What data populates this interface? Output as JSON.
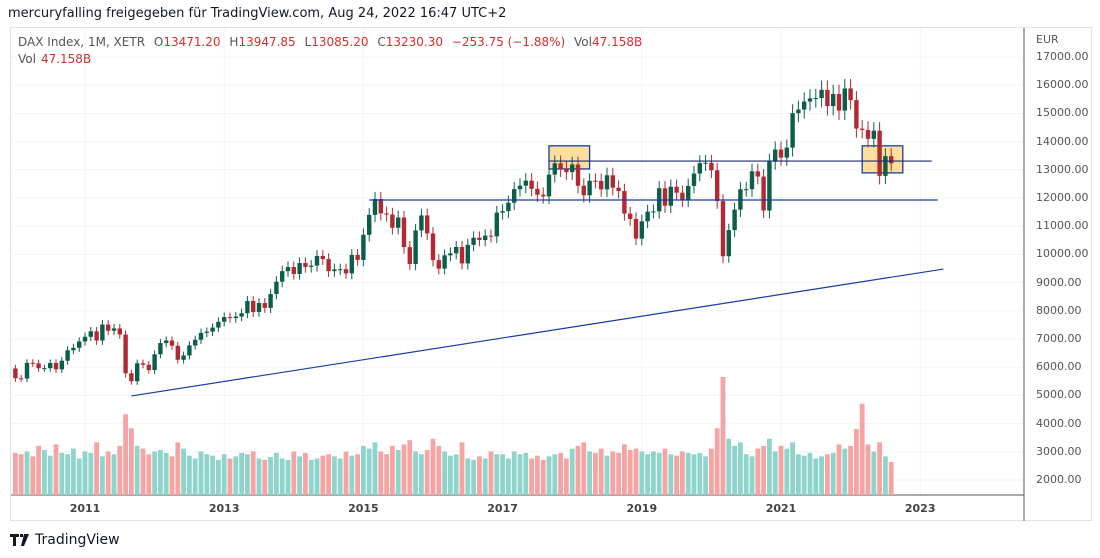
{
  "header": {
    "title": "mercuryfalling freigegeben für TradingView.com, Aug 24, 2022 16:47 UTC+2"
  },
  "legend": {
    "symbol": "DAX Index, 1M, XETR",
    "o_label": "O",
    "o": "13471.20",
    "h_label": "H",
    "h": "13947.85",
    "l_label": "L",
    "l": "13085.20",
    "c_label": "C",
    "c": "13230.30",
    "change": "−253.75 (−1.88%)",
    "vol_label": "Vol",
    "vol": "47.158B",
    "vol2_label": "Vol",
    "vol2": "47.158B"
  },
  "currency": "EUR",
  "price_ticks": [
    "17000.00",
    "16000.00",
    "15000.00",
    "14000.00",
    "13000.00",
    "12000.00",
    "11000.00",
    "10000.00",
    "9000.00",
    "8000.00",
    "7000.00",
    "6000.00",
    "5000.00",
    "4000.00",
    "3000.00",
    "2000.00"
  ],
  "time_ticks": [
    "2011",
    "2013",
    "2015",
    "2017",
    "2019",
    "2021",
    "2023"
  ],
  "brand": "TradingView",
  "colors": {
    "up": "#0b5e4a",
    "down": "#b22833",
    "vol_up": "#8fd4cb",
    "vol_down": "#f5a3a3",
    "drawing": "#1a3aa8",
    "box_fill": "#fbd98c"
  },
  "chart_data": {
    "type": "candlestick",
    "start": "2010-01",
    "interval": "1M",
    "closes": [
      5608,
      5598,
      6154,
      6136,
      5964,
      5966,
      6148,
      5925,
      6229,
      6601,
      6688,
      6914,
      7077,
      7273,
      6947,
      7514,
      7294,
      7376,
      7159,
      5785,
      5502,
      6141,
      6089,
      5898,
      6458,
      6856,
      6947,
      6761,
      6264,
      6416,
      6772,
      6970,
      7216,
      7260,
      7405,
      7612,
      7776,
      7741,
      7795,
      7914,
      8349,
      7959,
      8276,
      8103,
      8594,
      9033,
      9406,
      9552,
      9306,
      9692,
      9556,
      9603,
      9943,
      9833,
      9407,
      9470,
      9474,
      9326,
      9980,
      9806,
      10694,
      11402,
      11966,
      11454,
      11414,
      10945,
      11309,
      10259,
      9660,
      10850,
      11382,
      10743,
      9798,
      9495,
      9966,
      10039,
      10263,
      9680,
      10337,
      10593,
      10511,
      10665,
      10640,
      11481,
      11535,
      11834,
      12313,
      12438,
      12615,
      12325,
      12118,
      12056,
      12829,
      13230,
      13024,
      12918,
      13189,
      12436,
      12097,
      12612,
      12605,
      12306,
      12806,
      12364,
      12247,
      11447,
      11257,
      10559,
      11173,
      11516,
      11526,
      12344,
      11727,
      12399,
      12189,
      11939,
      12428,
      12867,
      13236,
      13249,
      12982,
      11890,
      9936,
      10862,
      11587,
      12311,
      12313,
      12945,
      12761,
      11556,
      13291,
      13719,
      13433,
      13786,
      15008,
      15136,
      15421,
      15531,
      15544,
      15835,
      15261,
      15688,
      15100,
      15885,
      15471,
      14461,
      14415,
      14098,
      14388,
      12784,
      13484,
      13230
    ],
    "first_open": 5957,
    "volume_billions": [
      60,
      58,
      62,
      55,
      70,
      64,
      56,
      72,
      60,
      58,
      66,
      52,
      62,
      60,
      75,
      55,
      62,
      58,
      70,
      115,
      95,
      70,
      66,
      58,
      62,
      64,
      60,
      55,
      75,
      66,
      56,
      52,
      62,
      58,
      56,
      50,
      58,
      52,
      55,
      60,
      58,
      62,
      52,
      50,
      54,
      60,
      52,
      50,
      62,
      55,
      60,
      50,
      52,
      56,
      58,
      55,
      52,
      62,
      56,
      58,
      70,
      66,
      75,
      62,
      58,
      70,
      64,
      72,
      78,
      62,
      58,
      64,
      80,
      70,
      62,
      56,
      58,
      75,
      52,
      50,
      55,
      52,
      62,
      58,
      58,
      52,
      62,
      58,
      60,
      52,
      56,
      50,
      55,
      58,
      60,
      52,
      66,
      70,
      75,
      62,
      60,
      66,
      56,
      62,
      60,
      72,
      64,
      66,
      62,
      58,
      62,
      60,
      66,
      58,
      56,
      62,
      60,
      58,
      60,
      55,
      66,
      95,
      168,
      80,
      70,
      75,
      58,
      55,
      66,
      70,
      80,
      62,
      70,
      66,
      75,
      58,
      56,
      60,
      52,
      55,
      58,
      60,
      72,
      66,
      70,
      94,
      130,
      72,
      62,
      75,
      55,
      47.158
    ],
    "drawings": [
      {
        "type": "rectangle",
        "from": "2017-09",
        "to": "2018-04",
        "price_top": 13850,
        "price_bottom": 13030
      },
      {
        "type": "rectangle",
        "from": "2022-03",
        "to": "2022-10",
        "price_top": 13850,
        "price_bottom": 12890
      },
      {
        "type": "horizontal_segment",
        "from": "2017-09",
        "to": "2023-03",
        "price": 13310
      },
      {
        "type": "horizontal_segment",
        "from": "2015-02",
        "to": "2023-04",
        "price": 11930
      },
      {
        "type": "trendline",
        "from": "2011-09",
        "to": "2023-05",
        "price_from": 4980,
        "price_to": 9480
      }
    ],
    "ylim": [
      2000,
      17000
    ]
  }
}
